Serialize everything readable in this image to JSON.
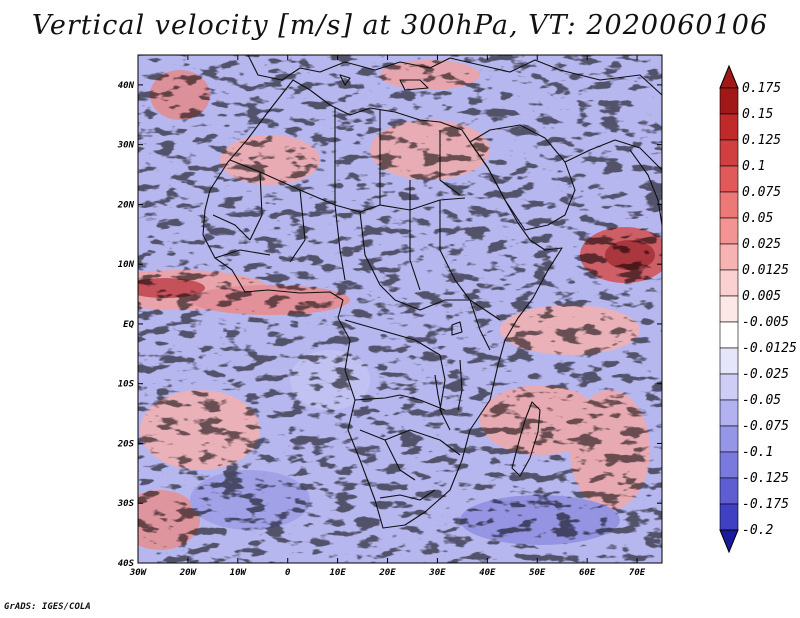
{
  "title": "Vertical velocity [m/s] at 300hPa, VT: 2020060106",
  "footer": "GrADS: IGES/COLA",
  "map": {
    "lon_range": [
      -30,
      75
    ],
    "lat_range": [
      -40,
      45
    ],
    "lat_ticks": [
      "40N",
      "30N",
      "20N",
      "10N",
      "EQ",
      "10S",
      "20S",
      "30S",
      "40S"
    ],
    "lon_ticks": [
      "30W",
      "20W",
      "10W",
      "0",
      "10E",
      "20E",
      "30E",
      "40E",
      "50E",
      "60E",
      "70E"
    ]
  },
  "colorbar": {
    "levels": [
      {
        "label": "0.175",
        "color": "#a01818"
      },
      {
        "label": "0.15",
        "color": "#c02a2a"
      },
      {
        "label": "0.125",
        "color": "#d04040"
      },
      {
        "label": "0.1",
        "color": "#e05a5a"
      },
      {
        "label": "0.075",
        "color": "#ec7878"
      },
      {
        "label": "0.05",
        "color": "#f39494"
      },
      {
        "label": "0.025",
        "color": "#f7b2b2"
      },
      {
        "label": "0.0125",
        "color": "#fad0d0"
      },
      {
        "label": "0.005",
        "color": "#fde8e8"
      },
      {
        "label": "-0.005",
        "color": "#ffffff"
      },
      {
        "label": "-0.0125",
        "color": "#e6e6fa"
      },
      {
        "label": "-0.025",
        "color": "#cdcdf6"
      },
      {
        "label": "-0.05",
        "color": "#b2b2f0"
      },
      {
        "label": "-0.075",
        "color": "#9696e8"
      },
      {
        "label": "-0.1",
        "color": "#7a7ade"
      },
      {
        "label": "-0.125",
        "color": "#5e5ed2"
      },
      {
        "label": "-0.175",
        "color": "#4040c2"
      },
      {
        "label": "-0.2",
        "color": "#2626ae"
      }
    ],
    "top_color": "#a01818",
    "bottom_color": "#1a1a9e"
  }
}
